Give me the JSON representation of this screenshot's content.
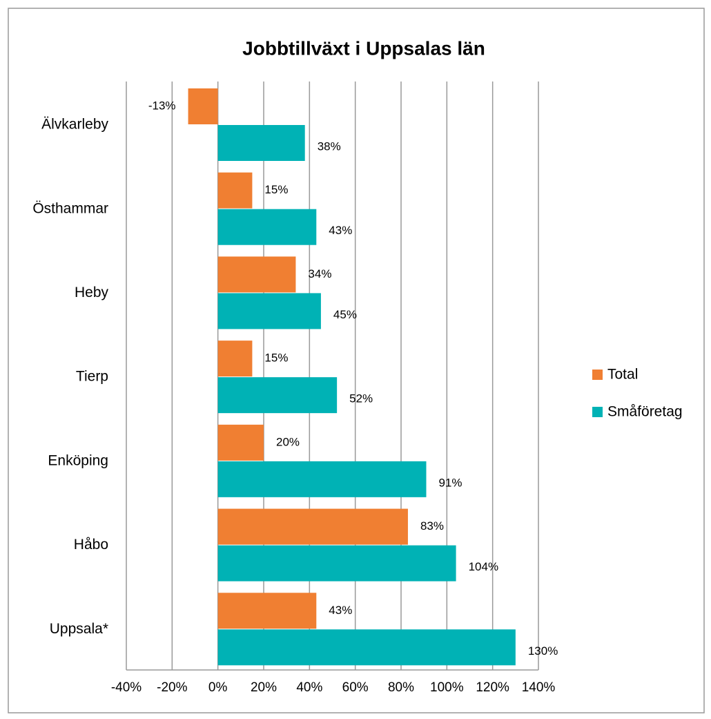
{
  "chart_data": {
    "type": "hbar",
    "title": "Jobbtillväxt i Uppsalas län",
    "categories": [
      "Älvkarleby",
      "Östhammar",
      "Heby",
      "Tierp",
      "Enköping",
      "Håbo",
      "Uppsala*"
    ],
    "series": [
      {
        "name": "Total",
        "color": "#f07f32",
        "values": [
          -13,
          15,
          34,
          15,
          20,
          83,
          43
        ],
        "value_labels": [
          "-13%",
          "15%",
          "34%",
          "15%",
          "20%",
          "83%",
          "43%"
        ]
      },
      {
        "name": "Småföretag",
        "color": "#00b2b5",
        "values": [
          38,
          43,
          45,
          52,
          91,
          104,
          130
        ],
        "value_labels": [
          "38%",
          "43%",
          "45%",
          "52%",
          "91%",
          "104%",
          "130%"
        ]
      }
    ],
    "xlim": [
      -40,
      140
    ],
    "xticks": [
      {
        "value": -40,
        "label": "-40%"
      },
      {
        "value": -20,
        "label": "-20%"
      },
      {
        "value": 0,
        "label": "0%"
      },
      {
        "value": 20,
        "label": "20%"
      },
      {
        "value": 40,
        "label": "40%"
      },
      {
        "value": 60,
        "label": "60%"
      },
      {
        "value": 80,
        "label": "80%"
      },
      {
        "value": 100,
        "label": "100%"
      },
      {
        "value": 120,
        "label": "120%"
      },
      {
        "value": 140,
        "label": "140%"
      }
    ],
    "grid": true,
    "legend": "right"
  }
}
